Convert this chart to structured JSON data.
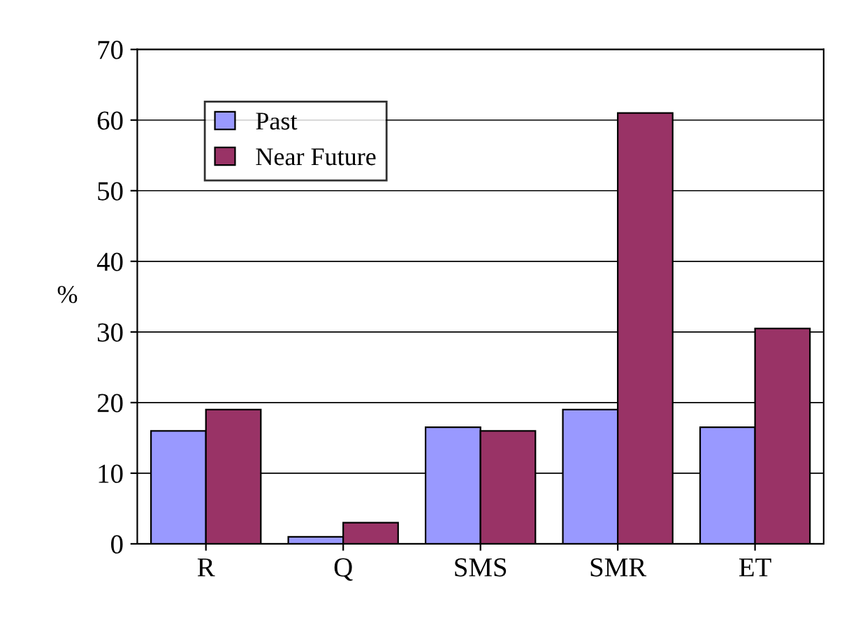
{
  "chart_data": {
    "type": "bar",
    "ylabel": "%",
    "categories": [
      "R",
      "Q",
      "SMS",
      "SMR",
      "ET"
    ],
    "series": [
      {
        "name": "Past",
        "color": "#9999ff",
        "values": [
          16,
          1,
          16.5,
          19,
          16.5
        ]
      },
      {
        "name": "Near Future",
        "color": "#993366",
        "values": [
          19,
          3,
          16,
          61,
          30.5
        ]
      }
    ],
    "ylim": [
      0,
      70
    ],
    "yticks": [
      0,
      10,
      20,
      30,
      40,
      50,
      60,
      70
    ],
    "grid": "y",
    "legend": "top left"
  }
}
